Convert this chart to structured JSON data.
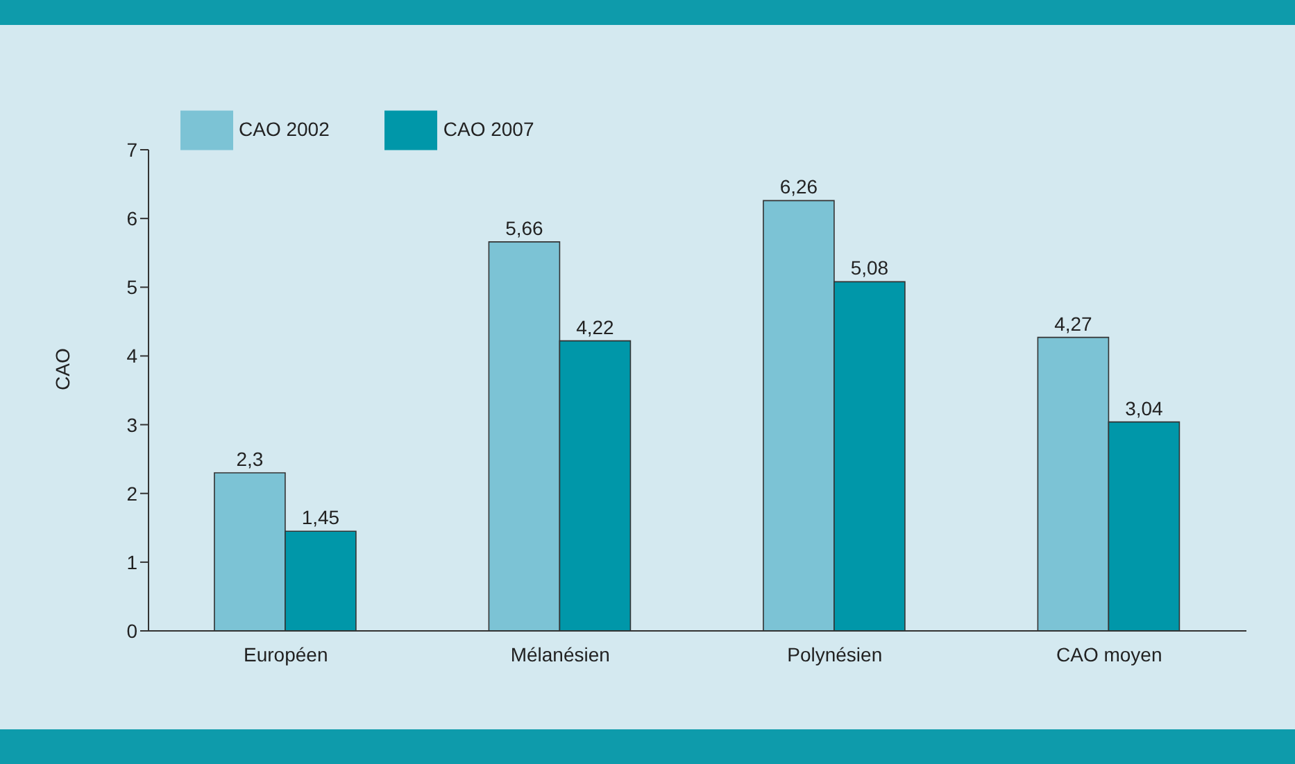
{
  "chart_data": {
    "type": "bar",
    "ylabel": "CAO",
    "categories": [
      "Européen",
      "Mélanésien",
      "Polynésien",
      "CAO moyen"
    ],
    "series": [
      {
        "name": "CAO 2002",
        "color": "#7cc3d5",
        "values": [
          2.3,
          5.66,
          6.26,
          4.27
        ],
        "value_labels": [
          "2,3",
          "5,66",
          "6,26",
          "4,27"
        ]
      },
      {
        "name": "CAO 2007",
        "color": "#0097a9",
        "values": [
          1.45,
          4.22,
          5.08,
          3.04
        ],
        "value_labels": [
          "1,45",
          "4,22",
          "5,08",
          "3,04"
        ]
      }
    ],
    "ylim": [
      0,
      7
    ],
    "yticks": [
      0,
      1,
      2,
      3,
      4,
      5,
      6,
      7
    ],
    "legend": "top left"
  }
}
